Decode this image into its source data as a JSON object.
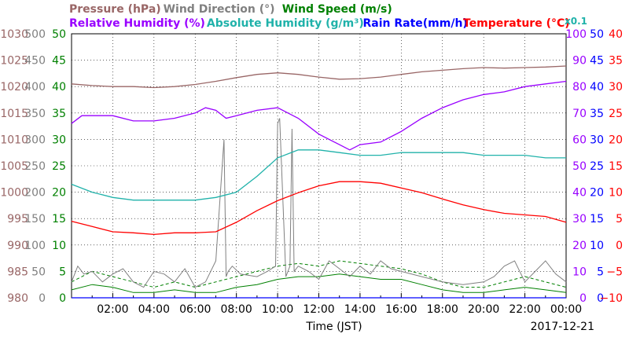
{
  "chart_data": {
    "type": "line",
    "date": "2017-12-21",
    "xlabel": "Time (JST)",
    "x_ticks": [
      "02:00",
      "04:00",
      "06:00",
      "08:00",
      "10:00",
      "12:00",
      "14:00",
      "16:00",
      "18:00",
      "20:00",
      "22:00",
      "00:00"
    ],
    "xlim": [
      "00:00",
      "24:00"
    ],
    "axes": {
      "pressure": {
        "label": "Pressure (hPa)",
        "color": "#996666",
        "ticks": [
          980,
          985,
          990,
          995,
          1000,
          1005,
          1010,
          1015,
          1020,
          1025,
          1030
        ]
      },
      "wind_direction": {
        "label": "Wind Direction (°)",
        "color": "#808080",
        "ticks": [
          0,
          50,
          100,
          150,
          200,
          250,
          300,
          350,
          400,
          450,
          500
        ]
      },
      "wind_speed": {
        "label": "Wind Speed (m/s)",
        "color": "#008000",
        "ticks": [
          0,
          5,
          10,
          15,
          20,
          25,
          30,
          35,
          40,
          45,
          50
        ]
      },
      "humidity": {
        "label": "Relative Humidity (%)",
        "color": "#9900ff",
        "ticks": [
          0,
          10,
          20,
          30,
          40,
          50,
          60,
          70,
          80,
          90,
          100
        ]
      },
      "rain_rate": {
        "label": "Rain Rate(mm/h)",
        "color": "#0000ff",
        "ticks": [
          0,
          5,
          10,
          15,
          20,
          25,
          30,
          35,
          40,
          45,
          50
        ]
      },
      "temperature": {
        "label": "Temperature (°C)",
        "color": "#ff0000",
        "ticks": [
          -10,
          -5,
          0,
          5,
          10,
          15,
          20,
          25,
          30,
          35,
          40
        ]
      }
    },
    "legend": [
      {
        "text": "Pressure (hPa)",
        "color": "#996666"
      },
      {
        "text": "Wind Direction (°)",
        "color": "#808080"
      },
      {
        "text": "Wind Speed (m/s)",
        "color": "#008000"
      },
      {
        "text": "Relative Humidity (%)",
        "color": "#9900ff"
      },
      {
        "text": "Absolute Humidity (g/m³)",
        "color": "#20b2aa"
      },
      {
        "text": "Rain Rate(mm/h)",
        "color": "#0000ff"
      },
      {
        "text": "Temperature (°C)",
        "color": "#ff0000"
      }
    ],
    "abs_humidity_scale_note": "x0.1",
    "series": [
      {
        "name": "Pressure (hPa)",
        "axis": "pressure",
        "color": "#996666",
        "x": [
          0,
          1,
          2,
          3,
          4,
          5,
          6,
          7,
          8,
          9,
          10,
          11,
          12,
          13,
          14,
          15,
          16,
          17,
          18,
          19,
          20,
          21,
          22,
          23,
          24
        ],
        "values": [
          1020.5,
          1020.2,
          1020.0,
          1020.0,
          1019.8,
          1020.0,
          1020.4,
          1021.0,
          1021.7,
          1022.3,
          1022.6,
          1022.3,
          1021.8,
          1021.4,
          1021.5,
          1021.8,
          1022.3,
          1022.8,
          1023.1,
          1023.4,
          1023.6,
          1023.5,
          1023.6,
          1023.7,
          1023.9
        ]
      },
      {
        "name": "Relative Humidity (%)",
        "axis": "humidity",
        "color": "#9900ff",
        "x": [
          0,
          0.5,
          1,
          2,
          3,
          4,
          5,
          6,
          6.5,
          7,
          7.5,
          8,
          9,
          10,
          10.5,
          11,
          12,
          12.5,
          13,
          13.5,
          14,
          15,
          16,
          17,
          18,
          19,
          20,
          21,
          22,
          23,
          24
        ],
        "values": [
          66,
          69,
          69,
          69,
          67,
          67,
          68,
          70,
          72,
          71,
          68,
          69,
          71,
          72,
          70,
          68,
          62,
          60,
          58,
          56,
          58,
          59,
          63,
          68,
          72,
          75,
          77,
          78,
          80,
          81,
          82
        ]
      },
      {
        "name": "Absolute Humidity (g/m³)",
        "axis": "humidity",
        "color": "#20b2aa",
        "x": [
          0,
          1,
          2,
          3,
          4,
          5,
          6,
          7,
          8,
          9,
          10,
          11,
          12,
          13,
          14,
          15,
          16,
          17,
          18,
          19,
          20,
          21,
          22,
          23,
          24
        ],
        "values": [
          43,
          40,
          38,
          37,
          37,
          37,
          37,
          38,
          40,
          46,
          53,
          56,
          56,
          55,
          54,
          54,
          55,
          55,
          55,
          55,
          54,
          54,
          54,
          53,
          53
        ]
      },
      {
        "name": "Temperature (°C)",
        "axis": "temperature",
        "color": "#ff0000",
        "x": [
          0,
          1,
          2,
          3,
          4,
          5,
          6,
          7,
          8,
          9,
          10,
          11,
          12,
          13,
          14,
          15,
          16,
          17,
          18,
          19,
          20,
          21,
          22,
          23,
          24
        ],
        "values": [
          4.5,
          3.5,
          2.5,
          2.3,
          2.0,
          2.3,
          2.3,
          2.5,
          4.3,
          6.5,
          8.4,
          9.9,
          11.2,
          12.0,
          12.0,
          11.7,
          10.8,
          9.9,
          8.7,
          7.6,
          6.7,
          6.0,
          5.7,
          5.4,
          4.3
        ]
      },
      {
        "name": "Wind Direction (°)",
        "axis": "wind_direction",
        "color": "#808080",
        "x": [
          0,
          0.3,
          0.6,
          1,
          1.5,
          2,
          2.5,
          3,
          3.5,
          4,
          4.5,
          5,
          5.5,
          6,
          6.5,
          7,
          7.4,
          7.5,
          7.6,
          7.8,
          8.2,
          9,
          9.5,
          9.9,
          10,
          10.1,
          10.4,
          10.6,
          10.7,
          10.8,
          11,
          11.5,
          12,
          12.5,
          13,
          13.5,
          14,
          14.5,
          15,
          15.5,
          16,
          17,
          18,
          19,
          20,
          20.5,
          21,
          21.5,
          22,
          22.5,
          23,
          23.5,
          24
        ],
        "values": [
          30,
          60,
          45,
          50,
          30,
          45,
          55,
          30,
          20,
          50,
          45,
          30,
          55,
          20,
          30,
          70,
          300,
          40,
          50,
          60,
          45,
          40,
          50,
          60,
          330,
          340,
          40,
          60,
          320,
          50,
          60,
          50,
          35,
          70,
          55,
          40,
          60,
          45,
          70,
          55,
          50,
          40,
          30,
          25,
          30,
          40,
          60,
          70,
          30,
          50,
          70,
          45,
          30
        ]
      },
      {
        "name": "Wind Speed (m/s)",
        "axis": "wind_speed",
        "color": "#008000",
        "x": [
          0,
          1,
          2,
          3,
          4,
          5,
          6,
          7,
          8,
          9,
          10,
          11,
          12,
          13,
          14,
          15,
          16,
          17,
          18,
          19,
          20,
          21,
          22,
          23,
          24
        ],
        "values": [
          1.5,
          2.5,
          2.0,
          1.0,
          1.0,
          1.5,
          1.0,
          1.0,
          2.0,
          2.5,
          3.5,
          4.0,
          4.0,
          4.5,
          4.0,
          3.5,
          3.5,
          2.5,
          1.5,
          1.0,
          1.0,
          1.5,
          2.0,
          1.5,
          1.0
        ]
      },
      {
        "name": "Wind Speed max (m/s)",
        "axis": "wind_speed",
        "color": "#008000",
        "dashed": true,
        "x": [
          0,
          1,
          2,
          3,
          4,
          5,
          6,
          7,
          8,
          9,
          10,
          11,
          12,
          13,
          14,
          15,
          16,
          17,
          18,
          19,
          20,
          21,
          22,
          23,
          24
        ],
        "values": [
          3,
          5,
          4,
          3,
          2,
          3,
          2,
          3,
          4,
          5,
          6,
          6.5,
          6,
          7,
          6.5,
          6,
          5.5,
          4.5,
          3,
          2,
          2,
          3,
          4,
          3,
          2
        ]
      },
      {
        "name": "Rain Rate(mm/h)",
        "axis": "rain_rate",
        "color": "#0000ff",
        "x": [
          0,
          24
        ],
        "values": [
          0,
          0
        ]
      }
    ]
  }
}
